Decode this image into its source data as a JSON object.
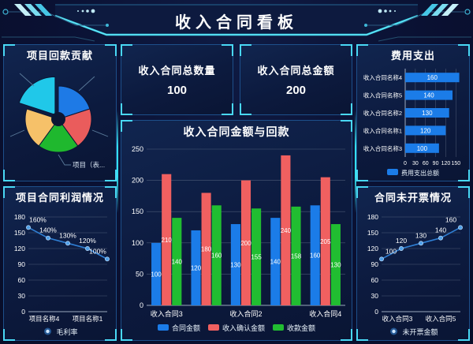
{
  "header": {
    "title": "收入合同看板"
  },
  "stats": [
    {
      "label": "收入合同总数量",
      "value": "100"
    },
    {
      "label": "收入合同总金额",
      "value": "200"
    }
  ],
  "colors": {
    "accent_cyan": "#3fdcf5",
    "panel_border": "#1d4f8a",
    "bar_blue": "#1b7ce8",
    "bar_red": "#f06060",
    "bar_green": "#21bd31",
    "pie_cyan": "#20c8e9",
    "pie_blue": "#1e7ae6",
    "pie_red": "#ea5c5c",
    "pie_green": "#1fb82e",
    "pie_orange": "#f6c169",
    "line_blue": "#2f7fd4"
  },
  "chart_data": [
    {
      "type": "pie",
      "title": "项目回款贡献",
      "annotation": "项目（表...",
      "slices": [
        {
          "color": "#1e7ae6",
          "value": 20,
          "exploded": false
        },
        {
          "color": "#ea5c5c",
          "value": 20,
          "exploded": false
        },
        {
          "color": "#1fb82e",
          "value": 20,
          "exploded": false
        },
        {
          "color": "#f6c169",
          "value": 20,
          "exploded": false
        },
        {
          "color": "#20c8e9",
          "value": 20,
          "exploded": true
        }
      ]
    },
    {
      "type": "bar",
      "title": "收入合同金额与回款",
      "categories": [
        "收入合同3",
        "",
        "收入合同2",
        "",
        "收入合同4"
      ],
      "series": [
        {
          "name": "合同金额",
          "color": "#1b7ce8",
          "values": [
            100,
            120,
            130,
            140,
            160
          ]
        },
        {
          "name": "收入确认金额",
          "color": "#f06060",
          "values": [
            210,
            180,
            200,
            240,
            205
          ]
        },
        {
          "name": "收款金额",
          "color": "#21bd31",
          "values": [
            140,
            160,
            155,
            158,
            130
          ]
        }
      ],
      "ylim": [
        0,
        250
      ],
      "ystep": 50,
      "grid": true,
      "legend_position": "bottom"
    },
    {
      "type": "bar",
      "orientation": "horizontal",
      "title": "费用支出",
      "categories": [
        "收入合同名称4",
        "收入合同名称5",
        "收入合同名称2",
        "收入合同名称1",
        "收入合同名称3"
      ],
      "series": [
        {
          "name": "费用支出总额",
          "color": "#1b7ce8",
          "values": [
            160,
            140,
            130,
            120,
            100
          ]
        }
      ],
      "xlim": [
        0,
        150
      ],
      "xticks": [
        0,
        30,
        60,
        90,
        120,
        150
      ],
      "grid": true,
      "legend_position": "bottom"
    },
    {
      "type": "line",
      "title": "项目合同利润情况",
      "categories": [
        "项目名称4",
        "",
        "",
        "项目名称1",
        ""
      ],
      "series": [
        {
          "name": "毛利率",
          "color": "#2f7fd4",
          "values": [
            160,
            140,
            130,
            120,
            100
          ],
          "labels": [
            "160%",
            "140%",
            "130%",
            "120%",
            "100%"
          ]
        }
      ],
      "ylim": [
        0,
        180
      ],
      "ystep": 30,
      "grid": true,
      "legend_position": "bottom"
    },
    {
      "type": "line",
      "title": "合同未开票情况",
      "categories": [
        "收入合同3",
        "",
        "",
        "收入合同5",
        ""
      ],
      "series": [
        {
          "name": "未开票金额",
          "color": "#2f7fd4",
          "values": [
            100,
            120,
            130,
            140,
            160
          ],
          "labels": [
            "100",
            "120",
            "130",
            "140",
            "160"
          ]
        }
      ],
      "ylim": [
        0,
        180
      ],
      "ystep": 30,
      "grid": true,
      "legend_position": "bottom"
    }
  ]
}
